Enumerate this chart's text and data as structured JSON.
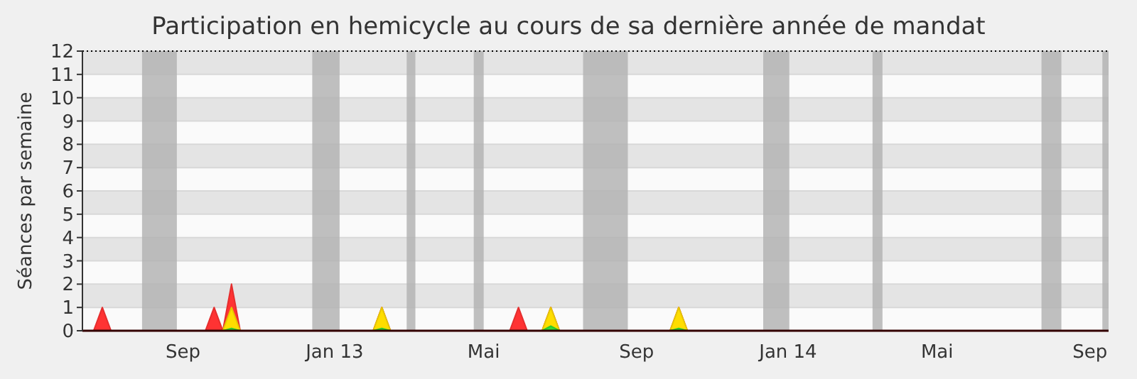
{
  "chart_data": {
    "type": "area",
    "title": "Participation en hemicycle au cours de sa dernière année de mandat",
    "ylabel": "Séances par semaine",
    "xlim": [
      "2012-06-12",
      "2014-09-16"
    ],
    "ylim": [
      0,
      12
    ],
    "xticks": [
      {
        "value": "2012-09-01",
        "label": "Sep"
      },
      {
        "value": "2013-01-01",
        "label": "Jan 13"
      },
      {
        "value": "2013-05-01",
        "label": "Mai"
      },
      {
        "value": "2013-09-01",
        "label": "Sep"
      },
      {
        "value": "2014-01-01",
        "label": "Jan 14"
      },
      {
        "value": "2014-05-01",
        "label": "Mai"
      },
      {
        "value": "2014-09-01",
        "label": "Sep"
      }
    ],
    "yticks": [
      0,
      1,
      2,
      3,
      4,
      5,
      6,
      7,
      8,
      9,
      10,
      11,
      12
    ],
    "grid": "y",
    "series": [
      {
        "color": "#ff3333",
        "x": [
          "2012-06-12",
          "2012-06-21",
          "2012-06-28",
          "2012-07-05",
          "2012-09-19",
          "2012-09-26",
          "2012-10-03",
          "2012-10-10",
          "2012-10-17",
          "2013-02-01",
          "2013-02-08",
          "2013-02-15",
          "2013-05-22",
          "2013-05-29",
          "2013-06-05",
          "2013-06-17",
          "2013-06-24",
          "2013-07-01",
          "2013-09-28",
          "2013-10-05",
          "2013-10-12",
          "2014-09-16"
        ],
        "values": [
          0,
          0,
          1,
          0,
          0,
          1,
          0,
          2,
          0,
          0,
          1,
          0,
          0,
          1,
          0,
          0,
          1,
          0,
          0,
          1,
          0,
          0
        ]
      },
      {
        "color": "#ffdd00",
        "x": [
          "2012-06-12",
          "2012-10-03",
          "2012-10-10",
          "2012-10-17",
          "2013-02-01",
          "2013-02-08",
          "2013-02-15",
          "2013-06-17",
          "2013-06-24",
          "2013-07-01",
          "2013-09-28",
          "2013-10-05",
          "2013-10-12",
          "2014-09-16"
        ],
        "values": [
          0,
          0,
          1,
          0,
          0,
          1,
          0,
          0,
          1,
          0,
          0,
          1,
          0,
          0
        ]
      },
      {
        "color": "#33dd33",
        "x": [
          "2012-06-12",
          "2012-10-03",
          "2012-10-10",
          "2012-10-17",
          "2013-02-01",
          "2013-02-08",
          "2013-02-15",
          "2013-06-17",
          "2013-06-24",
          "2013-07-01",
          "2013-09-28",
          "2013-10-05",
          "2013-10-12",
          "2014-09-16"
        ],
        "values": [
          0,
          0,
          0.1,
          0,
          0,
          0.1,
          0,
          0,
          0.2,
          0,
          0,
          0.1,
          0,
          0
        ]
      }
    ],
    "bands": [
      {
        "axis": "x",
        "from": "2012-07-30",
        "to": "2012-08-27",
        "color": "#b4b4b4"
      },
      {
        "axis": "x",
        "from": "2012-12-14",
        "to": "2013-01-05",
        "color": "#b4b4b4"
      },
      {
        "axis": "x",
        "from": "2013-02-28",
        "to": "2013-03-07",
        "color": "#b4b4b4"
      },
      {
        "axis": "x",
        "from": "2013-04-23",
        "to": "2013-05-01",
        "color": "#b4b4b4"
      },
      {
        "axis": "x",
        "from": "2013-07-20",
        "to": "2013-08-25",
        "color": "#b4b4b4"
      },
      {
        "axis": "x",
        "from": "2013-12-12",
        "to": "2014-01-02",
        "color": "#b4b4b4"
      },
      {
        "axis": "x",
        "from": "2014-03-10",
        "to": "2014-03-18",
        "color": "#b4b4b4"
      },
      {
        "axis": "x",
        "from": "2014-07-24",
        "to": "2014-08-09",
        "color": "#b4b4b4"
      },
      {
        "axis": "x",
        "from": "2014-09-11",
        "to": "2014-09-16",
        "color": "#b4b4b4"
      }
    ]
  }
}
